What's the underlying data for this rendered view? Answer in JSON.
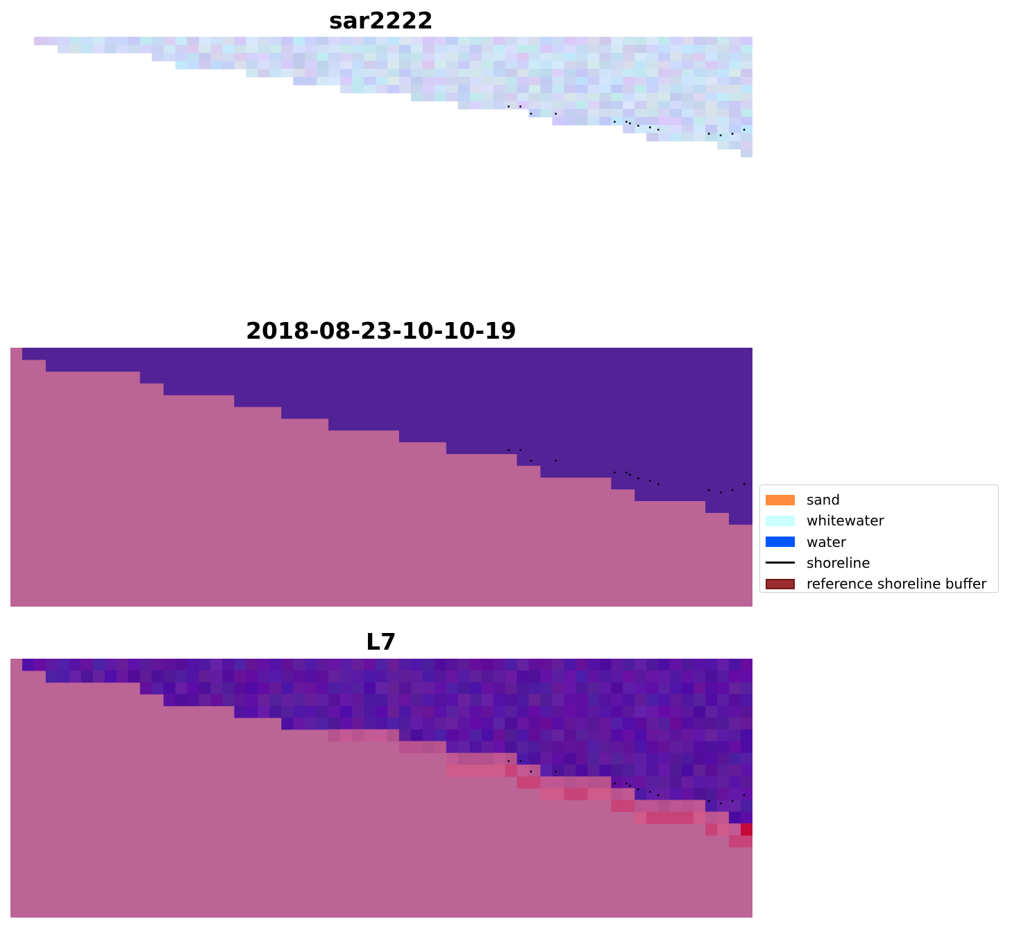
{
  "chart_data": [
    {
      "type": "heatmap",
      "title": "sar2222",
      "grid_cols": 61,
      "grid_rows": 22,
      "upper_fill": "#cdd6f4",
      "lower_fill": "#ffffff",
      "boundary_rows_by_col": [
        1,
        1,
        2,
        2,
        2,
        2,
        2,
        2,
        2,
        2,
        3,
        3,
        4,
        4,
        4,
        4,
        4,
        4,
        5,
        5,
        5,
        5,
        6,
        6,
        6,
        6,
        7,
        7,
        7,
        7,
        7,
        7,
        8,
        8,
        8,
        8,
        9,
        9,
        9,
        9,
        9,
        9,
        10,
        10,
        11,
        11,
        11,
        11,
        11,
        11,
        12,
        12,
        13,
        13,
        13,
        13,
        13,
        13,
        14,
        14,
        15
      ],
      "shoreline_points": [
        [
          42.3,
          8.7
        ],
        [
          43.3,
          8.7
        ],
        [
          44.2,
          9.6
        ],
        [
          46.3,
          9.6
        ],
        [
          51.3,
          10.6
        ],
        [
          52.3,
          10.6
        ],
        [
          52.6,
          10.8
        ],
        [
          53.3,
          11.1
        ],
        [
          54.3,
          11.3
        ],
        [
          55,
          11.6
        ],
        [
          59.3,
          12.1
        ],
        [
          60.3,
          12.3
        ],
        [
          61.3,
          12.1
        ],
        [
          62.3,
          11.6
        ]
      ]
    },
    {
      "type": "heatmap",
      "title": "2018-08-23-10-10-19",
      "grid_cols": 63,
      "grid_rows": 22,
      "upper_fill": "#532296",
      "lower_fill": "#bc6496",
      "boundary_rows_by_col": [
        0,
        1,
        1,
        2,
        2,
        2,
        2,
        2,
        2,
        2,
        2,
        3,
        3,
        4,
        4,
        4,
        4,
        4,
        4,
        5,
        5,
        5,
        5,
        6,
        6,
        6,
        6,
        7,
        7,
        7,
        7,
        7,
        7,
        8,
        8,
        8,
        8,
        9,
        9,
        9,
        9,
        9,
        9,
        10,
        10,
        11,
        11,
        11,
        11,
        11,
        11,
        12,
        12,
        13,
        13,
        13,
        13,
        13,
        13,
        14,
        14,
        15,
        15
      ],
      "shoreline_points": [
        [
          42.3,
          8.7
        ],
        [
          43.3,
          8.7
        ],
        [
          44.2,
          9.6
        ],
        [
          46.3,
          9.6
        ],
        [
          51.3,
          10.6
        ],
        [
          52.3,
          10.6
        ],
        [
          52.6,
          10.8
        ],
        [
          53.3,
          11.1
        ],
        [
          54.3,
          11.3
        ],
        [
          55,
          11.6
        ],
        [
          59.3,
          12.1
        ],
        [
          60.3,
          12.3
        ],
        [
          61.3,
          12.1
        ],
        [
          62.3,
          11.6
        ]
      ]
    },
    {
      "type": "heatmap",
      "title": "L7",
      "grid_cols": 63,
      "grid_rows": 22,
      "upper_fill": "#5a0aa0",
      "lower_fill": "#bc6496",
      "boundary_rows_by_col": [
        0,
        1,
        1,
        2,
        2,
        2,
        2,
        2,
        2,
        2,
        2,
        3,
        3,
        4,
        4,
        4,
        4,
        4,
        4,
        5,
        5,
        5,
        5,
        6,
        6,
        6,
        6,
        7,
        7,
        7,
        7,
        7,
        7,
        8,
        8,
        8,
        8,
        9,
        9,
        9,
        9,
        9,
        9,
        10,
        10,
        11,
        11,
        11,
        11,
        11,
        11,
        12,
        12,
        13,
        13,
        13,
        13,
        13,
        13,
        14,
        14,
        15,
        15
      ],
      "shoreline_points": [
        [
          42.3,
          8.7
        ],
        [
          43.3,
          8.7
        ],
        [
          44.2,
          9.6
        ],
        [
          46.3,
          9.6
        ],
        [
          51.3,
          10.6
        ],
        [
          52.3,
          10.6
        ],
        [
          52.6,
          10.8
        ],
        [
          53.3,
          11.1
        ],
        [
          54.3,
          11.3
        ],
        [
          55,
          11.6
        ],
        [
          59.3,
          12.1
        ],
        [
          60.3,
          12.3
        ],
        [
          61.3,
          12.1
        ],
        [
          62.3,
          11.6
        ]
      ]
    }
  ],
  "legend": {
    "placement": "right",
    "entries": [
      {
        "label": "sand",
        "color": "#ff8c3c",
        "kind": "patch"
      },
      {
        "label": "whitewater",
        "color": "#c8ffff",
        "kind": "patch"
      },
      {
        "label": "water",
        "color": "#0055ff",
        "kind": "patch"
      },
      {
        "label": "shoreline",
        "color": "#000000",
        "kind": "line"
      },
      {
        "label": "reference shoreline buffer",
        "color": "#9b2d30",
        "edge": "#6e1a1a",
        "kind": "patch"
      }
    ]
  }
}
